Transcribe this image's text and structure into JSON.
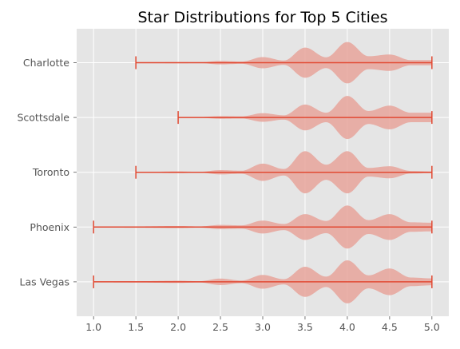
{
  "chart_data": {
    "type": "violin",
    "orientation": "horizontal",
    "title": "Star Distributions for Top 5 Cities",
    "xlabel": "",
    "ylabel": "",
    "xlim": [
      0.8,
      5.2
    ],
    "xticks": [
      1.0,
      1.5,
      2.0,
      2.5,
      3.0,
      3.5,
      4.0,
      4.5,
      5.0
    ],
    "grid": true,
    "categories": [
      "Charlotte",
      "Scottsdale",
      "Toronto",
      "Phoenix",
      "Las Vegas"
    ],
    "series": [
      {
        "category": "Charlotte",
        "min": 1.5,
        "max": 5.0,
        "density": [
          [
            1.5,
            0.01
          ],
          [
            2.0,
            0.03
          ],
          [
            2.25,
            0.02
          ],
          [
            2.5,
            0.08
          ],
          [
            2.75,
            0.05
          ],
          [
            3.0,
            0.26
          ],
          [
            3.25,
            0.1
          ],
          [
            3.5,
            0.7
          ],
          [
            3.75,
            0.25
          ],
          [
            4.0,
            0.96
          ],
          [
            4.25,
            0.3
          ],
          [
            4.5,
            0.38
          ],
          [
            4.75,
            0.12
          ],
          [
            5.0,
            0.12
          ]
        ]
      },
      {
        "category": "Scottsdale",
        "min": 2.0,
        "max": 5.0,
        "density": [
          [
            2.0,
            0.02
          ],
          [
            2.25,
            0.02
          ],
          [
            2.5,
            0.06
          ],
          [
            2.75,
            0.05
          ],
          [
            3.0,
            0.2
          ],
          [
            3.25,
            0.1
          ],
          [
            3.5,
            0.6
          ],
          [
            3.75,
            0.22
          ],
          [
            4.0,
            1.0
          ],
          [
            4.25,
            0.3
          ],
          [
            4.5,
            0.55
          ],
          [
            4.75,
            0.22
          ],
          [
            5.0,
            0.22
          ]
        ]
      },
      {
        "category": "Toronto",
        "min": 1.5,
        "max": 5.0,
        "density": [
          [
            1.5,
            0.01
          ],
          [
            2.0,
            0.04
          ],
          [
            2.25,
            0.02
          ],
          [
            2.5,
            0.1
          ],
          [
            2.75,
            0.07
          ],
          [
            3.0,
            0.4
          ],
          [
            3.25,
            0.15
          ],
          [
            3.5,
            0.98
          ],
          [
            3.75,
            0.35
          ],
          [
            4.0,
            0.98
          ],
          [
            4.25,
            0.2
          ],
          [
            4.5,
            0.28
          ],
          [
            4.75,
            0.06
          ],
          [
            5.0,
            0.04
          ]
        ]
      },
      {
        "category": "Phoenix",
        "min": 1.0,
        "max": 5.0,
        "density": [
          [
            1.0,
            0.02
          ],
          [
            1.5,
            0.03
          ],
          [
            2.0,
            0.05
          ],
          [
            2.25,
            0.03
          ],
          [
            2.5,
            0.1
          ],
          [
            2.75,
            0.08
          ],
          [
            3.0,
            0.3
          ],
          [
            3.25,
            0.14
          ],
          [
            3.5,
            0.6
          ],
          [
            3.75,
            0.28
          ],
          [
            4.0,
            1.0
          ],
          [
            4.25,
            0.32
          ],
          [
            4.5,
            0.6
          ],
          [
            4.75,
            0.22
          ],
          [
            5.0,
            0.2
          ]
        ]
      },
      {
        "category": "Las Vegas",
        "min": 1.0,
        "max": 5.0,
        "density": [
          [
            1.0,
            0.02
          ],
          [
            1.5,
            0.03
          ],
          [
            2.0,
            0.05
          ],
          [
            2.25,
            0.03
          ],
          [
            2.5,
            0.15
          ],
          [
            2.75,
            0.06
          ],
          [
            3.0,
            0.32
          ],
          [
            3.25,
            0.12
          ],
          [
            3.5,
            0.7
          ],
          [
            3.75,
            0.24
          ],
          [
            4.0,
            1.0
          ],
          [
            4.25,
            0.3
          ],
          [
            4.5,
            0.62
          ],
          [
            4.75,
            0.2
          ],
          [
            5.0,
            0.16
          ]
        ]
      }
    ],
    "colors": {
      "background": "#e5e5e5",
      "grid": "#ffffff",
      "violin_fill": "#e8a49b",
      "violin_line": "#e24a33",
      "text": "#555555",
      "title": "#000000"
    }
  }
}
